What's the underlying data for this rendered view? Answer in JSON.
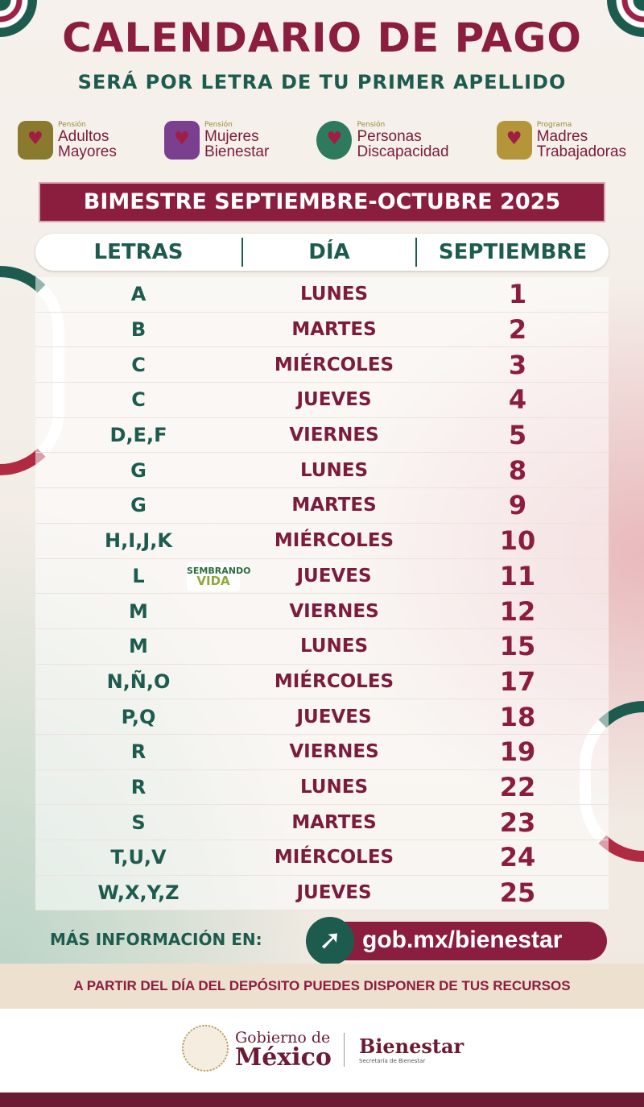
{
  "title": "CALENDARIO DE PAGO",
  "subtitle": "SERÁ POR LETRA DE TU PRIMER APELLIDO",
  "programs": [
    {
      "kind": "Pensión",
      "name1": "Adultos",
      "name2": "Mayores",
      "color": "#8a7a2e"
    },
    {
      "kind": "Pensión",
      "name1": "Mujeres",
      "name2": "Bienestar",
      "color": "#7a3f8f"
    },
    {
      "kind": "Pensión",
      "name1": "Personas",
      "name2": "Discapacidad",
      "color": "#2e7a5e"
    },
    {
      "kind": "Programa",
      "name1": "Madres",
      "name2": "Trabajadoras",
      "color": "#b5953a"
    }
  ],
  "banner": "BIMESTRE SEPTIEMBRE-OCTUBRE 2025",
  "headers": {
    "letters": "LETRAS",
    "day": "DÍA",
    "month": "SEPTIEMBRE"
  },
  "rows": [
    {
      "letters": "A",
      "day": "LUNES",
      "date": "1"
    },
    {
      "letters": "B",
      "day": "MARTES",
      "date": "2"
    },
    {
      "letters": "C",
      "day": "MIÉRCOLES",
      "date": "3"
    },
    {
      "letters": "C",
      "day": "JUEVES",
      "date": "4"
    },
    {
      "letters": "D,E,F",
      "day": "VIERNES",
      "date": "5"
    },
    {
      "letters": "G",
      "day": "LUNES",
      "date": "8"
    },
    {
      "letters": "G",
      "day": "MARTES",
      "date": "9"
    },
    {
      "letters": "H,I,J,K",
      "day": "MIÉRCOLES",
      "date": "10"
    },
    {
      "letters": "L",
      "day": "JUEVES",
      "date": "11"
    },
    {
      "letters": "M",
      "day": "VIERNES",
      "date": "12"
    },
    {
      "letters": "M",
      "day": "LUNES",
      "date": "15"
    },
    {
      "letters": "N,Ñ,O",
      "day": "MIÉRCOLES",
      "date": "17"
    },
    {
      "letters": "P,Q",
      "day": "JUEVES",
      "date": "18"
    },
    {
      "letters": "R",
      "day": "VIERNES",
      "date": "19"
    },
    {
      "letters": "R",
      "day": "LUNES",
      "date": "22"
    },
    {
      "letters": "S",
      "day": "MARTES",
      "date": "23"
    },
    {
      "letters": "T,U,V",
      "day": "MIÉRCOLES",
      "date": "24"
    },
    {
      "letters": "W,X,Y,Z",
      "day": "JUEVES",
      "date": "25"
    }
  ],
  "sembrando": {
    "line1": "SEMBRANDO",
    "line2": "VIDA"
  },
  "info_label": "MÁS INFORMACIÓN EN:",
  "link": "gob.mx/bienestar",
  "note": "A PARTIR DEL DÍA DEL DEPÓSITO PUEDES DISPONER DE TUS RECURSOS",
  "footer": {
    "gob1": "Gobierno de",
    "gob2": "México",
    "bienestar": "Bienestar",
    "secretaria": "Secretaría de Bienestar"
  },
  "colors": {
    "maroon": "#8b1d3f",
    "green": "#1e5b4f"
  }
}
